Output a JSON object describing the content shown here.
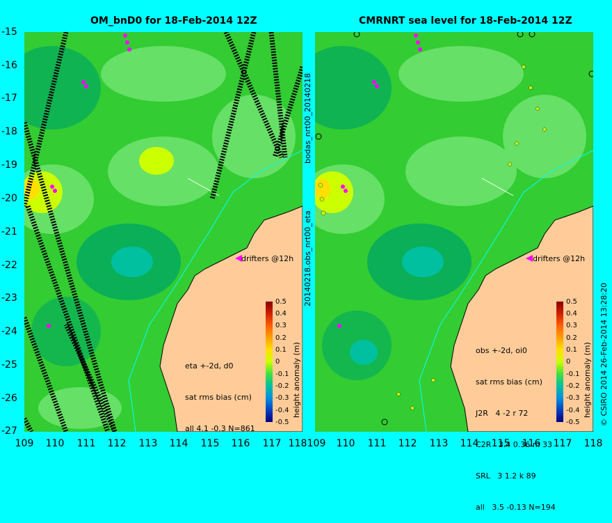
{
  "titles": {
    "left": "OM_bnD0 for 18-Feb-2014 12Z",
    "right": "CMRNRT sea level  for 18-Feb-2014 12Z"
  },
  "lat_labels": [
    "-15",
    "-16",
    "-17",
    "-18",
    "-19",
    "-20",
    "-21",
    "-22",
    "-23",
    "-24",
    "-25",
    "-26",
    "-27"
  ],
  "lon_labels": [
    "109",
    "110",
    "111",
    "112",
    "113",
    "114",
    "115",
    "116",
    "117",
    "118"
  ],
  "lon_labels_right": [
    "109",
    "110",
    "111",
    "112",
    "113",
    "114",
    "115",
    "116",
    "117",
    "118"
  ],
  "side_texts": {
    "bodas": "bodas_nrt00_20140218",
    "obs": "20140218.obs_nrt00_eta",
    "csiro": "© CSIRO 2014   26-Feb-2014 13:28:20"
  },
  "drifters_label": "drifters @12h",
  "left_stats": [
    "eta +-2d, d0",
    "sat rms bias (cm)",
    "all 4.1 -0.3 N=861"
  ],
  "right_stats": [
    "obs +-2d, oi0",
    "sat rms bias (cm)",
    "J2R   4 -2 r 72",
    "C2R   3.4 0.36 m 33",
    "SRL   3 1.2 k 89",
    "all   3.5 -0.13 N=194"
  ],
  "colorbar": {
    "label": "height anomaly (m)",
    "ticks": [
      "0.5",
      "0.4",
      "0.3",
      "0.2",
      "0.1",
      "0",
      "-0.1",
      "-0.2",
      "-0.3",
      "-0.4",
      "-0.5"
    ],
    "colors": [
      "#8b0000",
      "#d02000",
      "#ff6000",
      "#ffa000",
      "#ffe000",
      "#ccff00",
      "#40e040",
      "#00c0a0",
      "#0090e0",
      "#0040c0",
      "#000080"
    ]
  },
  "colors": {
    "land": "#ffcc99",
    "sea_green": "#33cc33",
    "sea_light": "#66e066",
    "sea_dark": "#00a860",
    "yellow": "#ccff00",
    "drifter": "#ff00ff",
    "coastline_river": "#00ffff"
  }
}
